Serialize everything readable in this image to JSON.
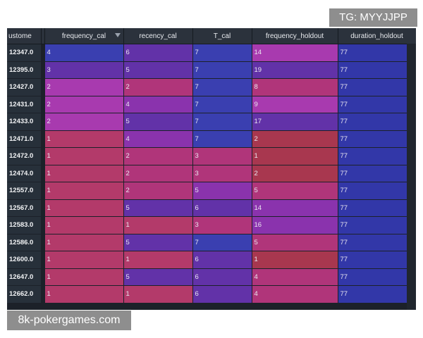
{
  "watermark_top": "TG: MYYJJPP",
  "watermark_bottom": "8k-pokergames.com",
  "columns": [
    "ustome",
    "frequency_cal",
    "recency_cal",
    "T_cal",
    "frequency_holdout",
    "duration_holdout"
  ],
  "rows": [
    {
      "id": "12347.0",
      "freq": "4",
      "rec": "6",
      "t": "7",
      "fh": "14",
      "dur": "77"
    },
    {
      "id": "12395.0",
      "freq": "3",
      "rec": "5",
      "t": "7",
      "fh": "19",
      "dur": "77"
    },
    {
      "id": "12427.0",
      "freq": "2",
      "rec": "2",
      "t": "7",
      "fh": "8",
      "dur": "77"
    },
    {
      "id": "12431.0",
      "freq": "2",
      "rec": "4",
      "t": "7",
      "fh": "9",
      "dur": "77"
    },
    {
      "id": "12433.0",
      "freq": "2",
      "rec": "5",
      "t": "7",
      "fh": "17",
      "dur": "77"
    },
    {
      "id": "12471.0",
      "freq": "1",
      "rec": "4",
      "t": "7",
      "fh": "2",
      "dur": "77"
    },
    {
      "id": "12472.0",
      "freq": "1",
      "rec": "2",
      "t": "3",
      "fh": "1",
      "dur": "77"
    },
    {
      "id": "12474.0",
      "freq": "1",
      "rec": "2",
      "t": "3",
      "fh": "2",
      "dur": "77"
    },
    {
      "id": "12557.0",
      "freq": "1",
      "rec": "2",
      "t": "5",
      "fh": "5",
      "dur": "77"
    },
    {
      "id": "12567.0",
      "freq": "1",
      "rec": "5",
      "t": "6",
      "fh": "14",
      "dur": "77"
    },
    {
      "id": "12583.0",
      "freq": "1",
      "rec": "1",
      "t": "3",
      "fh": "16",
      "dur": "77"
    },
    {
      "id": "12586.0",
      "freq": "1",
      "rec": "5",
      "t": "7",
      "fh": "5",
      "dur": "77"
    },
    {
      "id": "12600.0",
      "freq": "1",
      "rec": "1",
      "t": "6",
      "fh": "1",
      "dur": "77"
    },
    {
      "id": "12647.0",
      "freq": "1",
      "rec": "5",
      "t": "6",
      "fh": "4",
      "dur": "77"
    },
    {
      "id": "12662.0",
      "freq": "1",
      "rec": "1",
      "t": "6",
      "fh": "4",
      "dur": "77"
    }
  ]
}
